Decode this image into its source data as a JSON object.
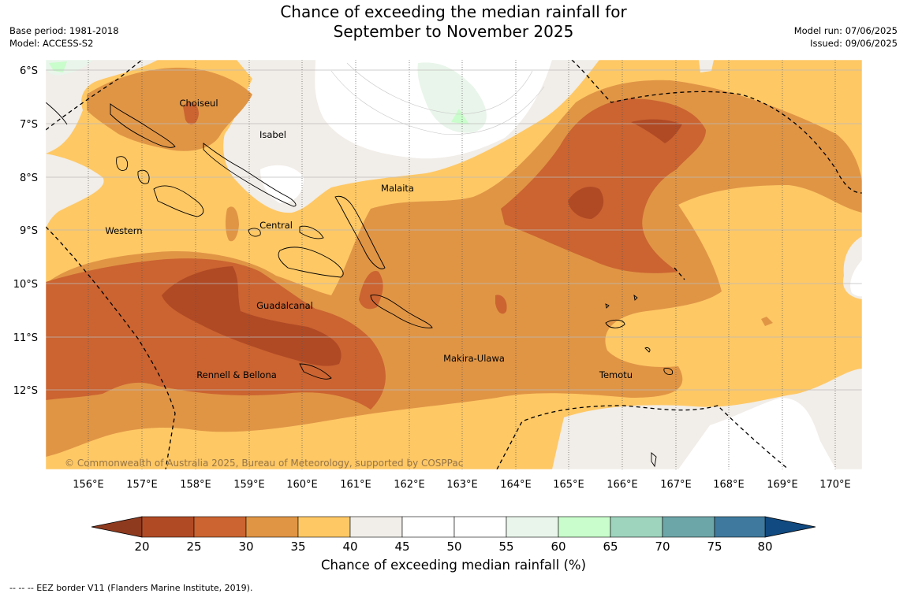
{
  "title": {
    "line1": "Chance of exceeding the median rainfall for",
    "line2": "September to November 2025"
  },
  "meta_left": {
    "base_period": "Base period: 1981-2018",
    "model": "Model: ACCESS-S2"
  },
  "meta_right": {
    "model_run": "Model run: 07/06/2025",
    "issued": "Issued: 09/06/2025"
  },
  "map": {
    "lat_labels": [
      "6°S",
      "7°S",
      "8°S",
      "9°S",
      "10°S",
      "11°S",
      "12°S"
    ],
    "lon_labels": [
      "156°E",
      "157°E",
      "158°E",
      "159°E",
      "160°E",
      "161°E",
      "162°E",
      "163°E",
      "164°E",
      "165°E",
      "166°E",
      "167°E",
      "168°E",
      "169°E",
      "170°E"
    ],
    "places": [
      "Choiseul",
      "Isabel",
      "Malaita",
      "Central",
      "Western",
      "Guadalcanal",
      "Makira-Ulawa",
      "Rennell & Bellona",
      "Temotu"
    ],
    "copyright": "© Commonwealth of Australia 2025, Bureau of Meteorology, supported by COSPPac"
  },
  "colorbar": {
    "ticks": [
      "20",
      "25",
      "30",
      "35",
      "40",
      "45",
      "50",
      "55",
      "60",
      "65",
      "70",
      "75",
      "80"
    ],
    "label": "Chance of exceeding median rainfall (%)",
    "colors": {
      "below20": "#8e3a1f",
      "c20_25": "#b04a25",
      "c25_30": "#cb6431",
      "c30_35": "#e09545",
      "c35_40": "#fec865",
      "c40_45": "#f1ede8",
      "c45_50": "#ffffff",
      "c50_55": "#ffffff",
      "c55_60": "#e9f5ea",
      "c60_65": "#c9fdcb",
      "c65_70": "#9ed4be",
      "c70_75": "#6da6a8",
      "c75_80": "#3f7a9e",
      "above80": "#104a80"
    }
  },
  "footnote": "--  --  -- EEZ border V11 (Flanders Marine Institute, 2019)."
}
